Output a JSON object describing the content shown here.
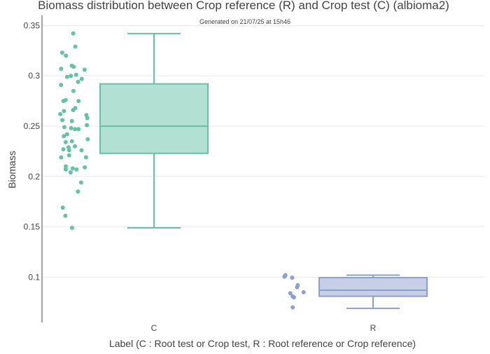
{
  "chart_data": {
    "type": "box",
    "title": "Biomass distribution between Crop reference (R) and Crop test (C) (albioma2)",
    "subtitle": "Generated on 21/07/25 at 15h46",
    "xlabel": "Label (C : Root test or Crop test, R : Root reference or Crop reference)",
    "ylabel": "Biomass",
    "categories": [
      "C",
      "R"
    ],
    "ylim": [
      0.055,
      0.36
    ],
    "yticks": [
      0.1,
      0.15,
      0.2,
      0.25,
      0.3,
      0.35
    ],
    "ytick_labels": [
      "0.1",
      "0.15",
      "0.2",
      "0.25",
      "0.3",
      "0.35"
    ],
    "grid": true,
    "series": [
      {
        "category": "C",
        "color": "#66c2a5",
        "fill": "rgba(102,194,165,0.5)",
        "box": {
          "whisker_low": 0.149,
          "q1": 0.223,
          "median": 0.25,
          "q3": 0.292,
          "whisker_high": 0.342
        },
        "points": [
          0.342,
          0.329,
          0.323,
          0.32,
          0.31,
          0.309,
          0.307,
          0.306,
          0.301,
          0.3,
          0.299,
          0.297,
          0.294,
          0.291,
          0.285,
          0.276,
          0.275,
          0.275,
          0.268,
          0.266,
          0.265,
          0.262,
          0.261,
          0.258,
          0.256,
          0.255,
          0.251,
          0.249,
          0.248,
          0.247,
          0.247,
          0.242,
          0.24,
          0.237,
          0.235,
          0.234,
          0.23,
          0.229,
          0.227,
          0.226,
          0.226,
          0.221,
          0.219,
          0.219,
          0.21,
          0.209,
          0.208,
          0.207,
          0.207,
          0.204,
          0.194,
          0.185,
          0.169,
          0.161,
          0.149
        ]
      },
      {
        "category": "R",
        "color": "#8da0cb",
        "fill": "rgba(141,160,203,0.5)",
        "box": {
          "whisker_low": 0.069,
          "q1": 0.081,
          "median": 0.087,
          "q3": 0.0995,
          "whisker_high": 0.102
        },
        "points": [
          0.102,
          0.1005,
          0.0995,
          0.092,
          0.09,
          0.085,
          0.084,
          0.081,
          0.08,
          0.07
        ]
      }
    ]
  }
}
